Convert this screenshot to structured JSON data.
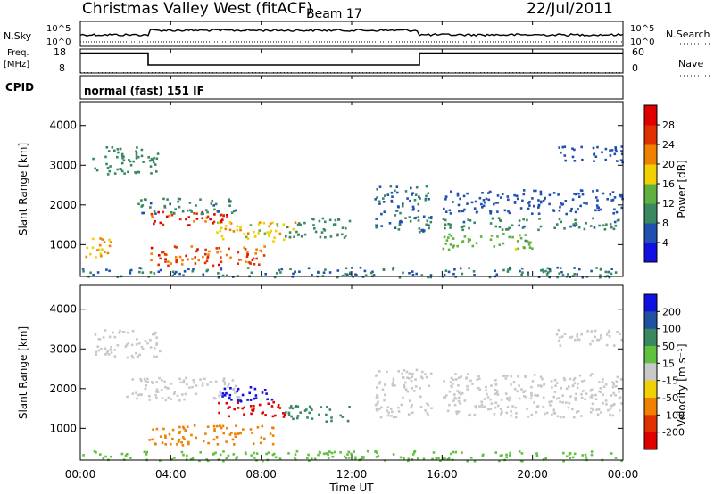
{
  "header": {
    "title": "Christmas Valley West (fitACF)",
    "beam": "Beam 17",
    "date": "22/Jul/2011"
  },
  "strip": {
    "nsky_label": "N.Sky",
    "nsky_ticks": [
      "10^5",
      "10^0"
    ],
    "nsearch_label": "N.Search",
    "nsearch_ticks": [
      "10^5",
      "10^0"
    ],
    "freq_label": "Freq.",
    "freq_unit": "[MHz]",
    "freq_ticks": [
      "18",
      "8"
    ],
    "nave_label": "Nave",
    "nave_ticks": [
      "60",
      "0"
    ],
    "cpid_label": "CPID",
    "cpid_value": "normal (fast) 151 IF"
  },
  "panels": {
    "power": {
      "ylabel": "Slant Range [km]",
      "colorbar_label": "Power [dB]"
    },
    "velocity": {
      "ylabel": "Slant Range [km]",
      "colorbar_label": "Velocity [m s⁻¹]"
    }
  },
  "xlabel": "Time UT",
  "chart_data": [
    {
      "type": "line",
      "title": "Freq. / Nave",
      "x_unit": "hours UT",
      "xlim": [
        0,
        24
      ],
      "series": [
        {
          "name": "Freq.",
          "x": [
            0,
            3,
            3,
            15,
            15,
            24
          ],
          "values": [
            16,
            16,
            10,
            10,
            16,
            16
          ]
        },
        {
          "name": "Nave",
          "x": [
            0,
            24
          ],
          "values": [
            12,
            12
          ]
        }
      ]
    },
    {
      "type": "heatmap",
      "title": "Power",
      "ylabel": "Slant Range [km]",
      "xlabel": "Time UT",
      "x_ticks": [
        "00:00",
        "04:00",
        "08:00",
        "12:00",
        "16:00",
        "20:00",
        "00:00"
      ],
      "y_ticks": [
        "1000",
        "2000",
        "3000",
        "4000"
      ],
      "xlim": [
        0,
        24
      ],
      "ylim": [
        200,
        4600
      ],
      "colorbar_ticks": [
        "4",
        "8",
        "12",
        "16",
        "20",
        "24",
        "28"
      ],
      "colorbar_range": [
        0,
        32
      ],
      "colors": [
        "#1010e0",
        "#2050b0",
        "#3a8860",
        "#60b040",
        "#f0d000",
        "#f08000",
        "#e03000",
        "#e00000"
      ],
      "regions": [
        {
          "t": [
            3.0,
            7.0
          ],
          "r": [
            1500,
            1850
          ],
          "v": 27
        },
        {
          "t": [
            3.0,
            8.3
          ],
          "r": [
            500,
            1000
          ],
          "v": 25
        },
        {
          "t": [
            6.0,
            9.5
          ],
          "r": [
            1100,
            1600
          ],
          "v": 18
        },
        {
          "t": [
            9.0,
            12.0
          ],
          "r": [
            1200,
            1700
          ],
          "v": 10
        },
        {
          "t": [
            0.2,
            1.3
          ],
          "r": [
            700,
            1200
          ],
          "v": 20
        },
        {
          "t": [
            0.5,
            3.5
          ],
          "r": [
            2800,
            3500
          ],
          "v": 10
        },
        {
          "t": [
            2.5,
            7.0
          ],
          "r": [
            1800,
            2200
          ],
          "v": 9
        },
        {
          "t": [
            13.0,
            15.5
          ],
          "r": [
            1300,
            2500
          ],
          "v": 8
        },
        {
          "t": [
            16.0,
            24.0
          ],
          "r": [
            1400,
            1700
          ],
          "v": 9
        },
        {
          "t": [
            16.0,
            24.0
          ],
          "r": [
            1800,
            2400
          ],
          "v": 6
        },
        {
          "t": [
            16.0,
            20.0
          ],
          "r": [
            900,
            1300
          ],
          "v": 14
        },
        {
          "t": [
            21.0,
            24.0
          ],
          "r": [
            3100,
            3500
          ],
          "v": 7
        },
        {
          "t": [
            0.0,
            24.0
          ],
          "r": [
            200,
            450
          ],
          "v": 8
        }
      ]
    },
    {
      "type": "heatmap",
      "title": "Velocity",
      "ylabel": "Slant Range [km]",
      "xlabel": "Time UT",
      "x_ticks": [
        "00:00",
        "04:00",
        "08:00",
        "12:00",
        "16:00",
        "20:00",
        "00:00"
      ],
      "y_ticks": [
        "1000",
        "2000",
        "3000",
        "4000"
      ],
      "xlim": [
        0,
        24
      ],
      "ylim": [
        200,
        4600
      ],
      "colorbar_ticks": [
        "200",
        "100",
        "50",
        "15",
        "-15",
        "-50",
        "-100",
        "-200"
      ],
      "colors": [
        "#1010e0",
        "#2050a0",
        "#3a8860",
        "#60c040",
        "#c8c8c8",
        "#f0d000",
        "#f08000",
        "#e03000",
        "#e00000"
      ],
      "regions": [
        {
          "t": [
            0.5,
            3.5
          ],
          "r": [
            2800,
            3500
          ],
          "v": 0
        },
        {
          "t": [
            2.0,
            7.0
          ],
          "r": [
            1700,
            2300
          ],
          "v": 0
        },
        {
          "t": [
            3.0,
            8.5
          ],
          "r": [
            600,
            1100
          ],
          "v": -60
        },
        {
          "t": [
            6.0,
            9.0
          ],
          "r": [
            1300,
            1700
          ],
          "v": -180
        },
        {
          "t": [
            9.0,
            12.0
          ],
          "r": [
            1200,
            1600
          ],
          "v": 40
        },
        {
          "t": [
            6.0,
            8.5
          ],
          "r": [
            1700,
            2100
          ],
          "v": 220
        },
        {
          "t": [
            13.0,
            15.5
          ],
          "r": [
            1300,
            2500
          ],
          "v": 0
        },
        {
          "t": [
            16.0,
            24.0
          ],
          "r": [
            1300,
            2400
          ],
          "v": 0
        },
        {
          "t": [
            21.0,
            24.0
          ],
          "r": [
            3100,
            3500
          ],
          "v": 0
        },
        {
          "t": [
            0.0,
            24.0
          ],
          "r": [
            200,
            450
          ],
          "v": 25
        }
      ]
    }
  ]
}
